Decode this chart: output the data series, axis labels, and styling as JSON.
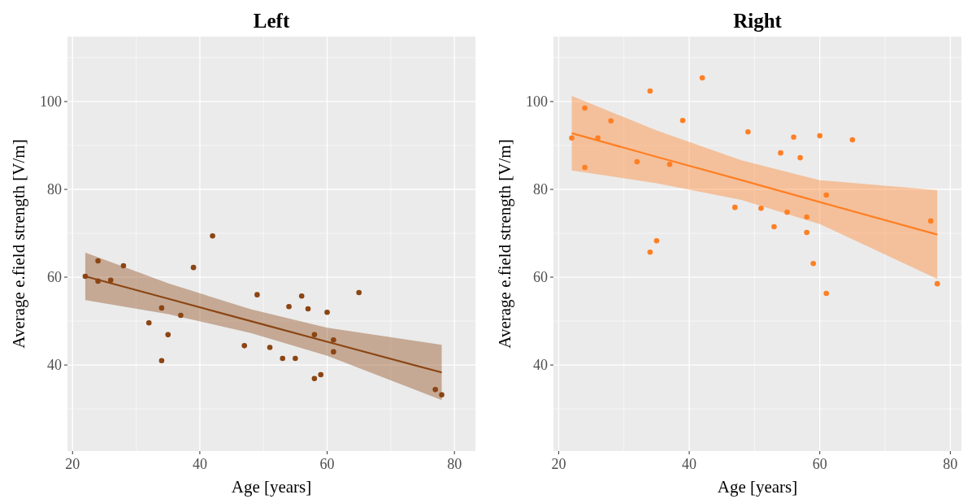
{
  "chart_data": [
    {
      "type": "scatter",
      "title": "Left",
      "xlabel": "Age [years]",
      "ylabel": "Average e.field strength [V/m]",
      "xlim": [
        19.2,
        83.3
      ],
      "ylim": [
        20.4,
        114.8
      ],
      "xticks": [
        20,
        40,
        60,
        80
      ],
      "yticks": [
        40,
        60,
        80,
        100
      ],
      "grid": true,
      "series": [
        {
          "marker": "circle",
          "color": "#8b4513",
          "x": [
            22,
            24,
            24,
            26,
            28,
            32,
            34,
            34,
            35,
            37,
            39,
            42,
            47,
            49,
            51,
            53,
            54,
            55,
            56,
            57,
            58,
            58,
            59,
            60,
            61,
            61,
            65,
            77,
            78
          ],
          "values": [
            60.2,
            63.7,
            59.1,
            59.3,
            62.6,
            49.6,
            53,
            41,
            46.9,
            51.3,
            62.2,
            69.4,
            44.4,
            56,
            44,
            41.5,
            53.3,
            41.5,
            55.7,
            52.8,
            36.9,
            46.9,
            37.8,
            52,
            45.7,
            43,
            56.5,
            34.4,
            33.2
          ]
        },
        {
          "type": "line",
          "color": "#8b4513",
          "x": [
            22,
            35,
            48,
            60,
            78
          ],
          "values": [
            60.2,
            55.1,
            50,
            45.3,
            38.3
          ],
          "lower": [
            54.8,
            51.6,
            47.3,
            42.1,
            32
          ],
          "upper": [
            65.6,
            58.6,
            52.7,
            48.5,
            44.6
          ]
        }
      ]
    },
    {
      "type": "scatter",
      "title": "Right",
      "xlabel": "Age [years]",
      "ylabel": "Average e.field strength [V/m]",
      "xlim": [
        19.2,
        81.7
      ],
      "ylim": [
        20.4,
        114.8
      ],
      "xticks": [
        20,
        40,
        60,
        80
      ],
      "yticks": [
        40,
        60,
        80,
        100
      ],
      "grid": true,
      "series": [
        {
          "marker": "circle",
          "color": "#ff7f24",
          "x": [
            22,
            24,
            24,
            26,
            28,
            32,
            34,
            34,
            35,
            37,
            39,
            42,
            47,
            49,
            51,
            53,
            54,
            55,
            56,
            57,
            58,
            58,
            59,
            60,
            61,
            61,
            65,
            77,
            78
          ],
          "values": [
            91.7,
            98.5,
            85,
            91.7,
            95.6,
            86.3,
            65.7,
            102.4,
            68.3,
            85.7,
            95.7,
            105.4,
            75.9,
            93.1,
            75.7,
            71.5,
            88.3,
            74.8,
            91.9,
            87.2,
            70.2,
            73.7,
            63.1,
            92.2,
            78.7,
            56.3,
            91.3,
            72.8,
            58.5
          ]
        },
        {
          "type": "line",
          "color": "#ff7f24",
          "x": [
            22,
            35,
            48,
            60,
            78
          ],
          "values": [
            92.8,
            87.4,
            82.1,
            77.1,
            69.7
          ],
          "lower": [
            84.3,
            81.4,
            77.6,
            72.1,
            59.6
          ],
          "upper": [
            101.3,
            93.4,
            86.6,
            82.1,
            79.8
          ]
        }
      ]
    }
  ]
}
